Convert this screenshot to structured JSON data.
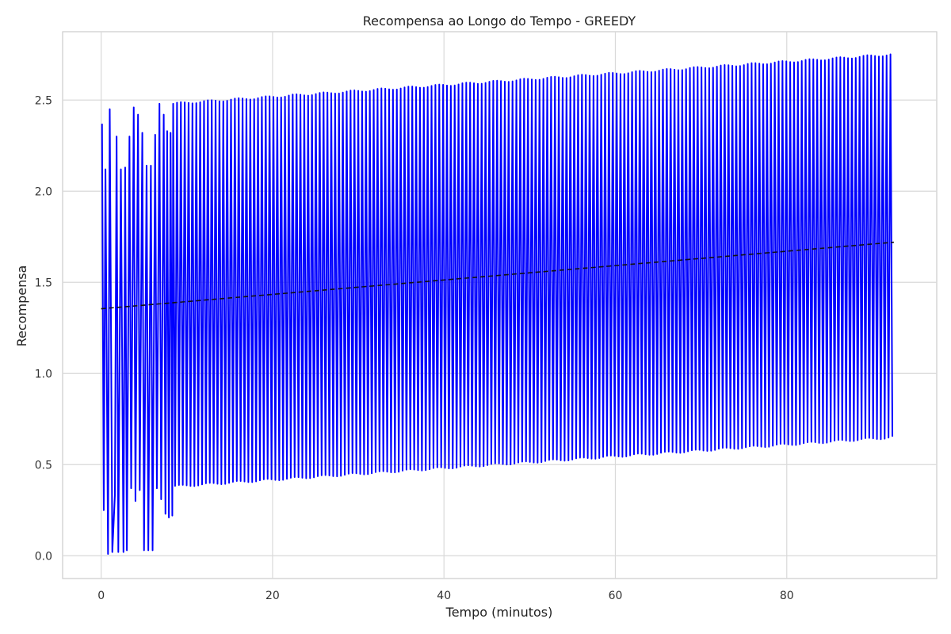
{
  "chart_data": {
    "type": "line",
    "title": "Recompensa ao Longo do Tempo - GREEDY",
    "xlabel": "Tempo (minutos)",
    "ylabel": "Recompensa",
    "xlim": [
      -4.5,
      97.5
    ],
    "ylim": [
      -0.125,
      2.875
    ],
    "x_ticks": [
      0,
      20,
      40,
      60,
      80
    ],
    "y_ticks": [
      0.0,
      0.5,
      1.0,
      1.5,
      2.0,
      2.5
    ],
    "x_tick_labels": [
      "0",
      "20",
      "40",
      "60",
      "80"
    ],
    "y_tick_labels": [
      "0.0",
      "0.5",
      "1.0",
      "1.5",
      "2.0",
      "2.5"
    ],
    "grid": true,
    "series": [
      {
        "color": "#0000ff",
        "style": "solid",
        "oscillation": {
          "early_x_range": [
            0.1,
            8.2
          ],
          "early_points": [
            [
              0.1,
              2.37
            ],
            [
              0.3,
              0.25
            ],
            [
              0.5,
              2.12
            ],
            [
              0.8,
              0.01
            ],
            [
              1.0,
              2.45
            ],
            [
              1.3,
              0.02
            ],
            [
              1.6,
              0.33
            ],
            [
              1.8,
              2.3
            ],
            [
              2.0,
              0.02
            ],
            [
              2.3,
              2.12
            ],
            [
              2.6,
              0.02
            ],
            [
              2.8,
              2.13
            ],
            [
              3.0,
              0.03
            ],
            [
              3.3,
              2.3
            ],
            [
              3.5,
              0.37
            ],
            [
              3.8,
              2.46
            ],
            [
              4.0,
              0.3
            ],
            [
              4.3,
              2.42
            ],
            [
              4.5,
              0.36
            ],
            [
              4.8,
              2.32
            ],
            [
              5.0,
              0.03
            ],
            [
              5.3,
              2.14
            ],
            [
              5.5,
              0.03
            ],
            [
              5.8,
              2.14
            ],
            [
              6.0,
              0.03
            ],
            [
              6.3,
              2.31
            ],
            [
              6.5,
              0.37
            ],
            [
              6.8,
              2.48
            ],
            [
              7.0,
              0.31
            ],
            [
              7.3,
              2.42
            ],
            [
              7.5,
              0.23
            ],
            [
              7.7,
              2.33
            ],
            [
              7.9,
              0.21
            ],
            [
              8.1,
              2.32
            ],
            [
              8.3,
              0.22
            ]
          ],
          "steady_x_range": [
            8.4,
            92.5
          ],
          "steady_period": 0.45,
          "upper_start": 2.48,
          "upper_end": 2.75,
          "lower_start": 0.38,
          "lower_end": 0.65
        }
      },
      {
        "color": "#111111",
        "style": "dashed",
        "x": [
          0,
          92.5
        ],
        "values": [
          1.355,
          1.72
        ]
      }
    ]
  }
}
